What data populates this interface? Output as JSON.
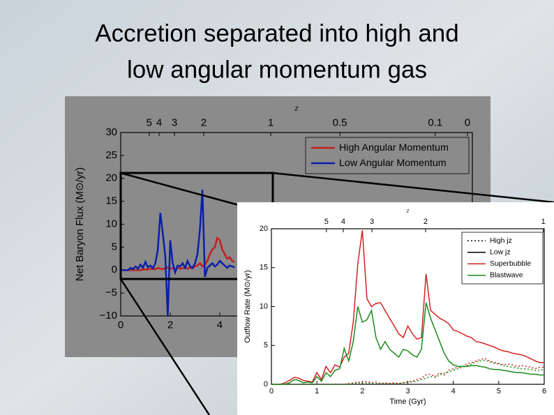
{
  "title": [
    "Accretion separated into high and",
    "low angular momentum gas"
  ],
  "chart_data": [
    {
      "type": "line",
      "top_label": "z",
      "ylabel": "Net Baryon Flux (M⊙/yr)",
      "xlim": [
        0,
        14.2
      ],
      "xticks": [
        0,
        2,
        4
      ],
      "ylim": [
        -10,
        30
      ],
      "yticks": [
        {
          "value": -10,
          "label": "−10"
        },
        {
          "value": -5,
          "label": "−5"
        },
        0,
        5,
        10,
        15,
        20,
        25,
        30
      ],
      "top_ticks": [
        {
          "value": 1.15,
          "label": "5"
        },
        {
          "value": 1.55,
          "label": "4"
        },
        {
          "value": 2.17,
          "label": "3"
        },
        {
          "value": 3.35,
          "label": "2"
        },
        {
          "value": 6.06,
          "label": "1"
        },
        {
          "value": 8.85,
          "label": "0.5"
        },
        {
          "value": 12.7,
          "label": "0.1"
        },
        {
          "value": 14.0,
          "label": "0"
        }
      ],
      "legend": "upper right",
      "x": [
        0,
        0.1,
        0.2,
        0.3,
        0.4,
        0.5,
        0.6,
        0.7,
        0.8,
        0.9,
        1.0,
        1.1,
        1.2,
        1.3,
        1.4,
        1.5,
        1.6,
        1.7,
        1.8,
        1.9,
        2.0,
        2.1,
        2.2,
        2.3,
        2.4,
        2.5,
        2.6,
        2.7,
        2.8,
        2.9,
        3.0,
        3.1,
        3.2,
        3.3,
        3.4,
        3.5,
        3.6,
        3.7,
        3.8,
        3.9,
        4.0,
        4.1,
        4.2,
        4.3,
        4.4,
        4.5,
        4.6
      ],
      "series": [
        {
          "name": "High Angular Momentum",
          "color": "#c41e1e",
          "values": [
            0,
            0,
            0,
            0,
            0,
            0,
            0,
            0,
            0,
            0.1,
            0.2,
            0.1,
            0.3,
            0.2,
            0.2,
            0.5,
            0.3,
            0.2,
            0.4,
            0.6,
            0.3,
            0.4,
            0.2,
            0.5,
            0.3,
            0.4,
            0.6,
            0.3,
            0.5,
            0.4,
            0.8,
            1.0,
            1.5,
            0.8,
            1.2,
            2.0,
            3.5,
            4.5,
            5.0,
            7.0,
            6.5,
            4.5,
            3.5,
            2.5,
            2.8,
            2.0,
            1.8
          ]
        },
        {
          "name": "Low Angular Momentum",
          "color": "#0b1fa8",
          "values": [
            0,
            0,
            0,
            0,
            0.5,
            0.2,
            0.8,
            0.3,
            1.2,
            0.5,
            1.8,
            0.6,
            1.0,
            0.4,
            1.5,
            4.5,
            12.5,
            8.0,
            3.0,
            -10.0,
            6.5,
            1.5,
            -0.5,
            1.0,
            0.8,
            1.5,
            0.5,
            2.0,
            0.8,
            0.5,
            1.5,
            3.5,
            9.0,
            17.5,
            -1.5,
            0.5,
            1.0,
            1.5,
            0.8,
            1.2,
            2.0,
            1.5,
            1.0,
            0.5,
            1.0,
            0.8,
            0.6
          ]
        }
      ]
    },
    {
      "type": "line",
      "top_label": "z",
      "xlabel": "Time (Gyr)",
      "ylabel": "Outflow Rate (M⊙/yr)",
      "xlim": [
        0,
        6
      ],
      "xticks": [
        0,
        1,
        2,
        3,
        4,
        5,
        6
      ],
      "ylim": [
        0,
        20
      ],
      "yticks": [
        0,
        5,
        10,
        15,
        20
      ],
      "top_ticks": [
        {
          "value": 1.21,
          "label": "5"
        },
        {
          "value": 1.58,
          "label": "4"
        },
        {
          "value": 2.21,
          "label": "3"
        },
        {
          "value": 3.39,
          "label": "2"
        },
        {
          "value": 5.98,
          "label": "1"
        }
      ],
      "legend": "upper right",
      "legend_styles": [
        {
          "label": "High jz",
          "dash": "dotted"
        },
        {
          "label": "Low jz",
          "dash": "solid"
        }
      ],
      "x": [
        0,
        0.1,
        0.2,
        0.3,
        0.4,
        0.5,
        0.6,
        0.7,
        0.8,
        0.9,
        1.0,
        1.1,
        1.2,
        1.3,
        1.4,
        1.5,
        1.6,
        1.7,
        1.8,
        1.9,
        2.0,
        2.1,
        2.2,
        2.3,
        2.4,
        2.5,
        2.6,
        2.7,
        2.8,
        2.9,
        3.0,
        3.1,
        3.2,
        3.3,
        3.4,
        3.5,
        3.6,
        3.7,
        3.8,
        3.9,
        4.0,
        4.1,
        4.2,
        4.3,
        4.4,
        4.5,
        4.6,
        4.7,
        4.8,
        4.9,
        5.0,
        5.1,
        5.2,
        5.3,
        5.4,
        5.5,
        5.6,
        5.7,
        5.8,
        5.9,
        6.0
      ],
      "series": [
        {
          "name": "Superbubble",
          "color": "#d62020",
          "values": [
            0,
            0,
            0,
            0.2,
            0.5,
            0.9,
            0.8,
            0.5,
            0.4,
            0.3,
            1.5,
            0.6,
            2.3,
            1.5,
            2.5,
            2.2,
            3.5,
            4.0,
            8.0,
            15.5,
            19.8,
            11,
            10,
            10.4,
            10.5,
            9.5,
            8.5,
            7.5,
            6.5,
            6.0,
            7.5,
            6.5,
            5.8,
            6.0,
            14.2,
            9.5,
            9.0,
            8.5,
            8.2,
            7.8,
            7.0,
            6.8,
            6.5,
            6.2,
            6.0,
            5.5,
            5.4,
            5.2,
            5.0,
            4.8,
            4.5,
            4.3,
            4.2,
            4.0,
            3.9,
            3.8,
            3.6,
            3.3,
            3.0,
            2.8,
            2.8
          ],
          "values_high": [
            0,
            0,
            0,
            0,
            0,
            0,
            0,
            0,
            0,
            0,
            0,
            0,
            0,
            0,
            0,
            0,
            0,
            0.1,
            0.2,
            0.3,
            0.2,
            0.4,
            0.2,
            0.3,
            0.1,
            0.2,
            0.1,
            0.2,
            0.1,
            0.2,
            0.3,
            0.4,
            0.6,
            0.8,
            1.2,
            1.3,
            1.0,
            1.5,
            1.2,
            1.8,
            2.0,
            2.2,
            2.3,
            2.6,
            2.8,
            3.0,
            3.2,
            3.3,
            3.0,
            2.8,
            2.7,
            2.5,
            2.6,
            2.5,
            2.3,
            2.4,
            2.3,
            2.2,
            2.0,
            2.2,
            2.2
          ]
        },
        {
          "name": "Blastwave",
          "color": "#1a8a1a",
          "values": [
            0,
            0,
            0,
            0,
            0.2,
            0.6,
            0.5,
            0.2,
            0.3,
            0.2,
            1.0,
            0.4,
            1.5,
            1.0,
            1.8,
            2.0,
            4.6,
            3.0,
            5.5,
            10.0,
            8.0,
            8.3,
            9.5,
            6.0,
            4.5,
            5.5,
            4.5,
            4.0,
            3.5,
            4.5,
            4.3,
            3.8,
            3.5,
            4.5,
            10.5,
            8.5,
            7.0,
            5.5,
            4.0,
            3.0,
            2.5,
            2.3,
            2.3,
            2.3,
            2.4,
            2.4,
            2.3,
            2.2,
            2.0,
            1.9,
            1.9,
            1.8,
            1.7,
            1.6,
            1.5,
            1.5,
            1.4,
            1.3,
            1.3,
            1.2,
            1.2
          ],
          "values_high": [
            0,
            0,
            0,
            0,
            0,
            0,
            0,
            0,
            0,
            0,
            0,
            0,
            0,
            0,
            0,
            0,
            0,
            0,
            0.1,
            0.2,
            0.1,
            0.2,
            0.1,
            0.1,
            0.1,
            0.1,
            0.1,
            0.1,
            0.1,
            0.2,
            0.3,
            0.3,
            0.4,
            0.6,
            0.8,
            1.0,
            0.9,
            1.2,
            1.4,
            1.6,
            1.8,
            2.0,
            2.2,
            2.4,
            2.6,
            2.9,
            3.0,
            3.1,
            2.9,
            2.7,
            2.6,
            2.4,
            2.3,
            2.2,
            2.1,
            2.0,
            2.0,
            1.9,
            1.8,
            1.8,
            1.9
          ]
        }
      ]
    }
  ]
}
